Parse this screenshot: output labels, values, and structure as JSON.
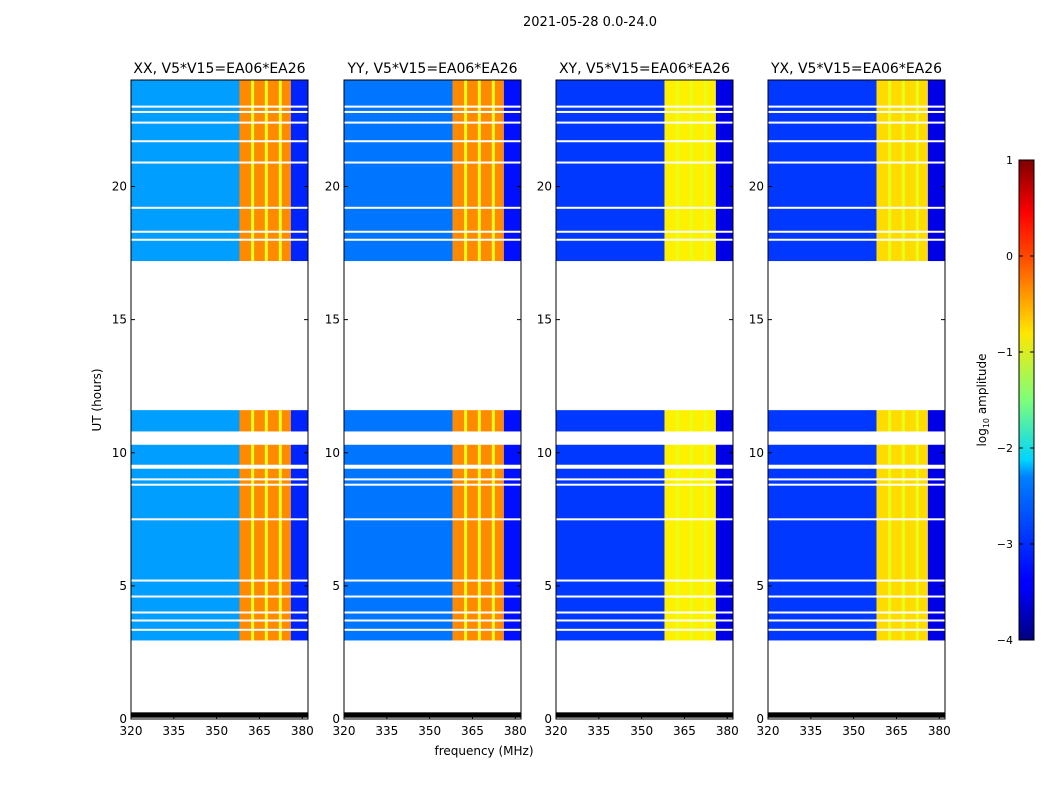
{
  "chart_data": {
    "type": "heatmap",
    "title": "2021-05-28 0.0-24.0",
    "xlabel": "frequency (MHz)",
    "ylabel": "UT (hours)",
    "xlim": [
      320,
      382
    ],
    "ylim": [
      0,
      24
    ],
    "xticks": [
      "320",
      "335",
      "350",
      "365",
      "380"
    ],
    "yticks": [
      "0",
      "5",
      "10",
      "15",
      "20"
    ],
    "colorbar": {
      "label": "log10 amplitude",
      "label_main": "log",
      "label_sub": "10",
      "label_rest": " amplitude",
      "range": [
        -4,
        1
      ],
      "ticks": [
        "1",
        "0",
        "−1",
        "−2",
        "−3",
        "−4"
      ],
      "tick_values": [
        1,
        0,
        -1,
        -2,
        -3,
        -4
      ],
      "colormap": "jet"
    },
    "time_segments": [
      [
        0.05,
        0.25
      ],
      [
        2.95,
        9.4
      ],
      [
        9.55,
        10.3
      ],
      [
        10.8,
        11.6
      ],
      [
        17.2,
        24.0
      ]
    ],
    "flagged_rows": [
      3.35,
      3.7,
      4.0,
      4.6,
      5.2,
      7.5,
      8.8,
      9.0,
      18.0,
      18.3,
      19.2,
      20.9,
      21.7,
      22.4,
      22.8,
      23.0
    ],
    "panels": [
      {
        "title": "XX, V5*V15=EA06*EA26",
        "bands": [
          {
            "f": [
              320,
              358
            ],
            "level": -2.6
          },
          {
            "f": [
              358,
              376
            ],
            "level": -0.3
          },
          {
            "f": [
              376,
              382
            ],
            "level": -3.2
          }
        ]
      },
      {
        "title": "YY, V5*V15=EA06*EA26",
        "bands": [
          {
            "f": [
              320,
              358
            ],
            "level": -2.8
          },
          {
            "f": [
              358,
              376
            ],
            "level": -0.3
          },
          {
            "f": [
              376,
              382
            ],
            "level": -3.3
          }
        ]
      },
      {
        "title": "XY, V5*V15=EA06*EA26",
        "bands": [
          {
            "f": [
              320,
              358
            ],
            "level": -3.1
          },
          {
            "f": [
              358,
              376
            ],
            "level": -0.8
          },
          {
            "f": [
              376,
              382
            ],
            "level": -3.5
          }
        ]
      },
      {
        "title": "YX, V5*V15=EA06*EA26",
        "bands": [
          {
            "f": [
              320,
              358
            ],
            "level": -3.1
          },
          {
            "f": [
              358,
              376
            ],
            "level": -0.7
          },
          {
            "f": [
              376,
              382
            ],
            "level": -3.5
          }
        ]
      }
    ],
    "channel_gaps_mhz": [
      362.6,
      367.4,
      372.3
    ],
    "channel_gap_level": -1.0
  }
}
